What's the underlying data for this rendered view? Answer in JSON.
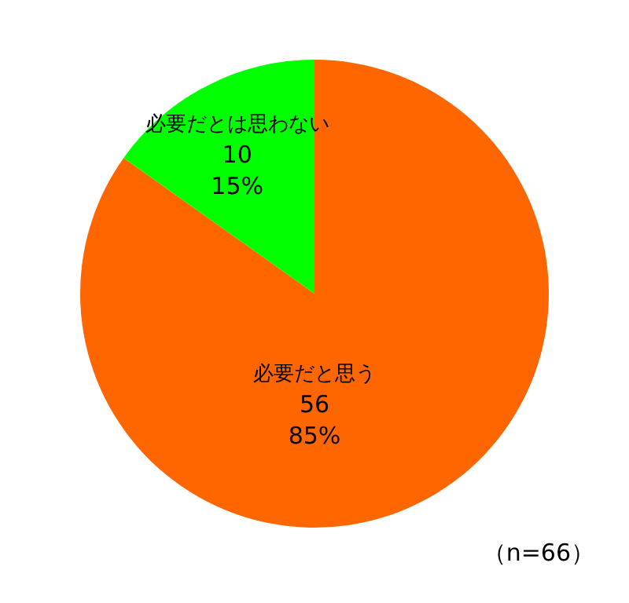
{
  "chart_data": {
    "type": "pie",
    "categories": [
      "必要だと思う",
      "必要だとは思わない"
    ],
    "values": [
      56,
      10
    ],
    "colors": [
      "#ff6600",
      "#00ff00"
    ],
    "value_labels": [
      "56\n85%",
      "10\n15%"
    ],
    "legend": false,
    "annotations": [
      "（n=66）"
    ]
  }
}
